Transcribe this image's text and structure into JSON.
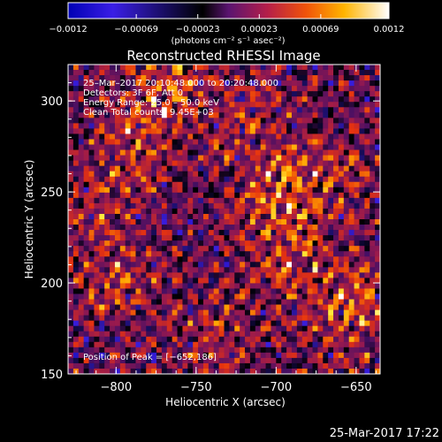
{
  "chart_data": {
    "type": "heatmap",
    "title": "Reconstructed RHESSI Image",
    "xlabel": "Heliocentric X (arcsec)",
    "ylabel": "Heliocentric Y (arcsec)",
    "xlim": [
      -830,
      -635
    ],
    "ylim": [
      150,
      320
    ],
    "x_ticks": [
      -800,
      -750,
      -700,
      -650
    ],
    "y_ticks": [
      150,
      200,
      250,
      300
    ],
    "x_tick_labels": [
      "−800",
      "−750",
      "−700",
      "−650"
    ],
    "y_tick_labels": [
      "150",
      "200",
      "250",
      "300"
    ],
    "colorbar": {
      "range": [
        -0.0012,
        0.0012
      ],
      "ticks": [
        -0.0012,
        -0.00069,
        -0.00023,
        0.00023,
        0.00069,
        0.0012
      ],
      "tick_labels": [
        "−0.0012",
        "−0.00069",
        "−0.00023",
        "0.00023",
        "0.00069",
        "0.0012"
      ],
      "unit_label": "(photons cm⁻² s⁻¹ asec⁻²)",
      "colors": [
        "#0000b4",
        "#3a1ee6",
        "#000000",
        "#7a1f86",
        "#e32a10",
        "#f58a00",
        "#ffde00",
        "#ffffff"
      ]
    },
    "annotations": [
      "25–Mar–2017 20:10:48.000 to 20:20:48.000",
      "Detectors: 3F 6F, Att 0",
      "Energy Range: 25.0 – 50.0 keV",
      "Clean    Total counts: 9.45E+03"
    ],
    "peak_label": "Position of Peak = [−652,186]",
    "peak_position": [
      -652,
      186
    ]
  },
  "footer_timestamp": "25-Mar-2017 17:22"
}
